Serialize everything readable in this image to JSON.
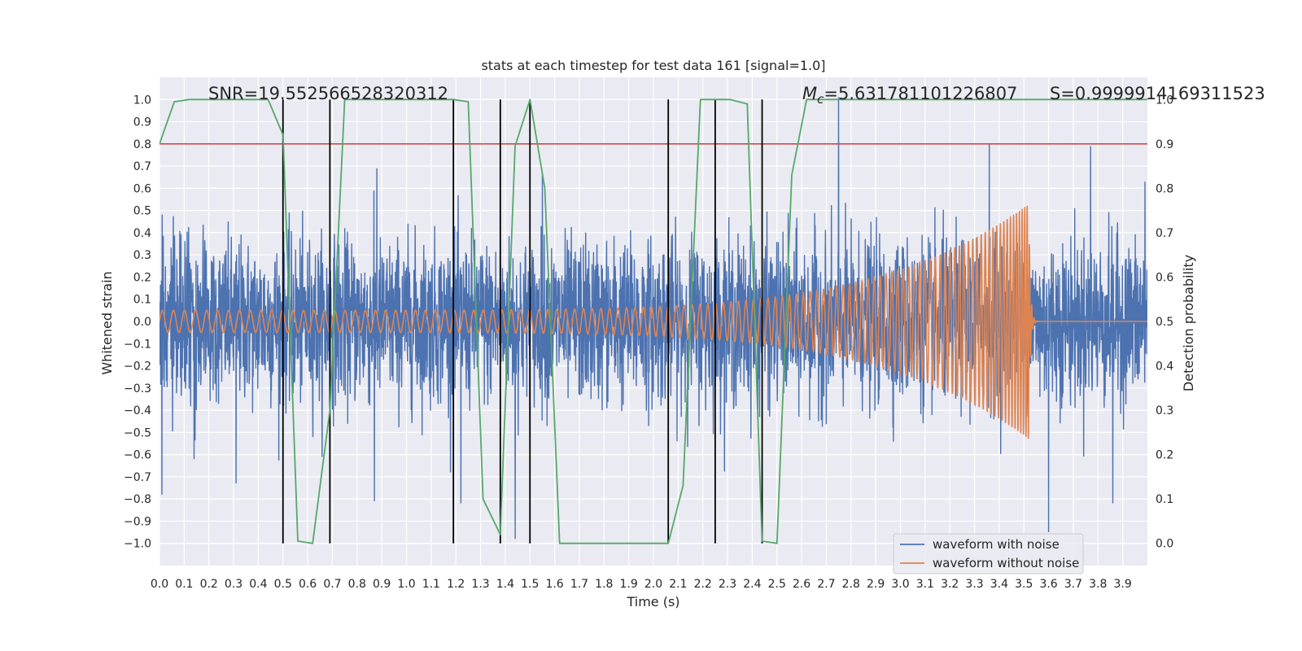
{
  "chart_data": {
    "type": "line",
    "title": "stats at each timestep for test data 161 [signal=1.0]",
    "xlabel": "Time (s)",
    "ylabel": "Whitened strain",
    "y2label": "Detection probability",
    "xlim": [
      0.0,
      4.0
    ],
    "ylim": [
      -1.1,
      1.1
    ],
    "y2lim": [
      -0.05,
      1.05
    ],
    "xticks": [
      "0.0",
      "0.1",
      "0.2",
      "0.3",
      "0.4",
      "0.5",
      "0.6",
      "0.7",
      "0.8",
      "0.9",
      "1.0",
      "1.1",
      "1.2",
      "1.3",
      "1.4",
      "1.5",
      "1.6",
      "1.7",
      "1.8",
      "1.9",
      "2.0",
      "2.1",
      "2.2",
      "2.3",
      "2.4",
      "2.5",
      "2.6",
      "2.7",
      "2.8",
      "2.9",
      "3.0",
      "3.1",
      "3.2",
      "3.3",
      "3.4",
      "3.5",
      "3.6",
      "3.7",
      "3.8",
      "3.9"
    ],
    "yticks": [
      "1.0",
      "0.9",
      "0.8",
      "0.7",
      "0.6",
      "0.5",
      "0.4",
      "0.3",
      "0.2",
      "0.1",
      "0.0",
      "−0.1",
      "−0.2",
      "−0.3",
      "−0.4",
      "−0.5",
      "−0.6",
      "−0.7",
      "−0.8",
      "−0.9",
      "−1.0"
    ],
    "y2ticks": [
      "1.0",
      "0.9",
      "0.8",
      "0.7",
      "0.6",
      "0.5",
      "0.4",
      "0.3",
      "0.2",
      "0.1",
      "0.0"
    ],
    "grid": true,
    "legend_position": "lower-right",
    "annotations": {
      "snr": "SNR=19.552566528320312",
      "mc_symbol": "M",
      "mc_sub": "c",
      "mc_value": "=5.631781101226807",
      "s": "S=0.9999914169311523"
    },
    "series": [
      {
        "name": "waveform with noise",
        "color": "#4c72b0",
        "axis": "left",
        "noise_amplitude_typical": 0.25,
        "spike_points": [
          {
            "x": 0.01,
            "y": -0.78
          },
          {
            "x": 0.14,
            "y": -0.62
          },
          {
            "x": 0.31,
            "y": 0.64
          },
          {
            "x": 0.31,
            "y": -0.73
          },
          {
            "x": 0.87,
            "y": -0.81
          },
          {
            "x": 0.88,
            "y": 0.69
          },
          {
            "x": 1.22,
            "y": -0.82
          },
          {
            "x": 1.44,
            "y": -0.98
          },
          {
            "x": 1.55,
            "y": 0.67
          },
          {
            "x": 2.75,
            "y": 1.01
          },
          {
            "x": 3.36,
            "y": 0.8
          },
          {
            "x": 3.6,
            "y": -0.95
          },
          {
            "x": 3.77,
            "y": 0.79
          },
          {
            "x": 3.86,
            "y": -0.82
          },
          {
            "x": 3.99,
            "y": 0.63
          }
        ]
      },
      {
        "name": "waveform without noise",
        "color": "#dd8452",
        "axis": "left",
        "chirp_start_amplitude": 0.05,
        "peak_amplitude": 0.53,
        "merger_time": 3.52,
        "start_frequency_hz": 22
      },
      {
        "name": "detection probability",
        "color": "#55a868",
        "axis": "right",
        "x": [
          0.0,
          0.06,
          0.12,
          0.19,
          0.25,
          0.31,
          0.38,
          0.44,
          0.5,
          0.56,
          0.62,
          0.69,
          0.75,
          0.81,
          0.88,
          0.94,
          1.0,
          1.06,
          1.12,
          1.19,
          1.25,
          1.31,
          1.38,
          1.44,
          1.5,
          1.56,
          1.62,
          1.69,
          1.75,
          1.81,
          1.88,
          1.94,
          2.0,
          2.06,
          2.12,
          2.19,
          2.25,
          2.31,
          2.38,
          2.44,
          2.5,
          2.56,
          2.62,
          2.69,
          2.75,
          2.81,
          2.88,
          2.94,
          3.0,
          3.06,
          3.12,
          3.19,
          3.25,
          3.31,
          3.38,
          3.44,
          3.5,
          3.56,
          3.62,
          3.69,
          3.75,
          3.81,
          3.88,
          3.94,
          4.0
        ],
        "values": [
          0.9,
          0.995,
          1.0,
          1.0,
          1.0,
          1.0,
          1.0,
          1.0,
          0.92,
          0.005,
          0.0,
          0.3,
          1.0,
          1.0,
          1.0,
          1.0,
          1.0,
          1.0,
          1.0,
          1.0,
          0.995,
          0.1,
          0.02,
          0.895,
          1.0,
          0.8,
          0.0,
          0.0,
          0.0,
          0.0,
          0.0,
          0.0,
          0.0,
          0.0,
          0.13,
          1.0,
          1.0,
          1.0,
          0.99,
          0.005,
          0.0,
          0.83,
          1.0,
          1.0,
          1.0,
          1.0,
          1.0,
          1.0,
          1.0,
          1.0,
          1.0,
          1.0,
          1.0,
          1.0,
          1.0,
          1.0,
          1.0,
          1.0,
          1.0,
          1.0,
          1.0,
          1.0,
          1.0,
          1.0,
          1.0
        ]
      }
    ],
    "threshold_line": {
      "y": 0.9,
      "axis": "right",
      "color": "#c44e52"
    },
    "vertical_markers": {
      "x": [
        0.5,
        0.69,
        1.19,
        1.38,
        1.5,
        2.06,
        2.25,
        2.44
      ],
      "color": "#000000",
      "y_range": [
        -1.0,
        1.0
      ]
    }
  }
}
